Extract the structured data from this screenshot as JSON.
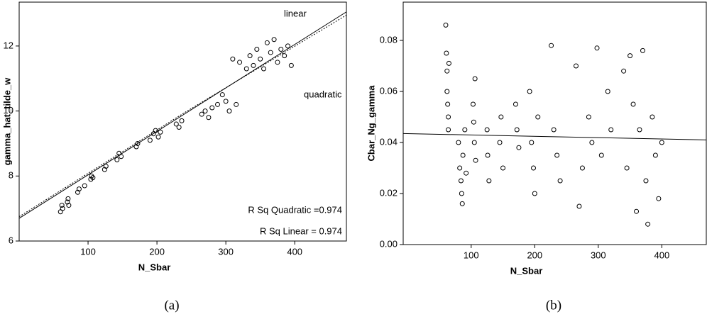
{
  "chart_data": [
    {
      "type": "scatter",
      "caption": "(a)",
      "x_label": "N_Sbar",
      "y_label": "gamma_hat_tilde_w",
      "xlim": [
        0,
        475
      ],
      "ylim": [
        6,
        13.35
      ],
      "xticks": [
        100,
        200,
        300,
        400
      ],
      "yticks": [
        6,
        8,
        10,
        12
      ],
      "color": "#000000",
      "annotations": [
        "linear",
        "quadratic",
        "R Sq Quadratic =0.974",
        "R Sq Linear = 0.974"
      ],
      "x": [
        60,
        62,
        63,
        70,
        71,
        72,
        85,
        87,
        95,
        104,
        105,
        107,
        124,
        126,
        142,
        145,
        148,
        170,
        172,
        190,
        195,
        198,
        202,
        205,
        228,
        232,
        236,
        265,
        270,
        275,
        280,
        288,
        295,
        300,
        305,
        315,
        320,
        330,
        335,
        340,
        345,
        350,
        355,
        360,
        365,
        370,
        375,
        380,
        385,
        390,
        395,
        310
      ],
      "values": [
        6.9,
        7.1,
        7.0,
        7.2,
        7.3,
        7.1,
        7.5,
        7.6,
        7.7,
        7.9,
        8.0,
        7.95,
        8.2,
        8.3,
        8.5,
        8.7,
        8.6,
        8.9,
        9.0,
        9.1,
        9.3,
        9.4,
        9.2,
        9.35,
        9.6,
        9.5,
        9.7,
        9.9,
        10.0,
        9.8,
        10.1,
        10.2,
        10.5,
        10.3,
        10.0,
        10.2,
        11.5,
        11.3,
        11.7,
        11.4,
        11.9,
        11.6,
        11.3,
        12.1,
        11.8,
        12.2,
        11.5,
        11.9,
        11.7,
        12.0,
        11.4,
        11.6
      ],
      "lines": [
        {
          "style": "solid",
          "x": [
            0,
            475
          ],
          "values": [
            6.7,
            13.05
          ]
        },
        {
          "style": "dotted",
          "x": [
            0,
            240,
            475
          ],
          "values": [
            6.75,
            9.95,
            12.95
          ]
        }
      ]
    },
    {
      "type": "scatter",
      "caption": "(b)",
      "x_label": "N_Sbar",
      "y_label": "Cbar_Ng_gamma",
      "xlim": [
        -7,
        470
      ],
      "ylim": [
        0,
        0.095
      ],
      "xticks": [
        100,
        200,
        300,
        400
      ],
      "yticks": [
        {
          "value": 0,
          "label": "0.00"
        },
        0.02,
        0.04,
        0.06,
        0.08
      ],
      "color": "#000000",
      "x": [
        60,
        61,
        62,
        62,
        63,
        64,
        64,
        65,
        80,
        82,
        84,
        85,
        86,
        87,
        90,
        92,
        103,
        104,
        105,
        106,
        107,
        125,
        126,
        128,
        145,
        147,
        150,
        170,
        172,
        175,
        192,
        195,
        198,
        200,
        205,
        226,
        230,
        235,
        240,
        265,
        270,
        275,
        285,
        290,
        298,
        305,
        315,
        320,
        340,
        345,
        350,
        355,
        360,
        365,
        370,
        375,
        378,
        385,
        390,
        395,
        400
      ],
      "values": [
        0.086,
        0.075,
        0.068,
        0.06,
        0.055,
        0.05,
        0.045,
        0.071,
        0.04,
        0.03,
        0.025,
        0.02,
        0.016,
        0.035,
        0.045,
        0.028,
        0.055,
        0.048,
        0.04,
        0.065,
        0.033,
        0.045,
        0.035,
        0.025,
        0.04,
        0.05,
        0.03,
        0.055,
        0.045,
        0.038,
        0.06,
        0.04,
        0.03,
        0.02,
        0.05,
        0.078,
        0.045,
        0.035,
        0.025,
        0.07,
        0.015,
        0.03,
        0.05,
        0.04,
        0.077,
        0.035,
        0.06,
        0.045,
        0.068,
        0.03,
        0.074,
        0.055,
        0.013,
        0.045,
        0.076,
        0.025,
        0.008,
        0.05,
        0.035,
        0.018,
        0.04
      ],
      "lines": [
        {
          "style": "solid",
          "x": [
            -7,
            470
          ],
          "values": [
            0.0435,
            0.041
          ]
        }
      ]
    }
  ]
}
